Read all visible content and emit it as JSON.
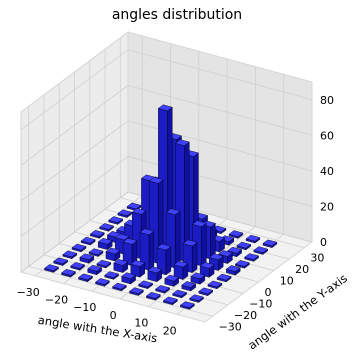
{
  "chart_data": {
    "type": "bar3d",
    "title": "angles distribution",
    "xlabel": "angle with the X-axis",
    "ylabel": "angle with the Y-axis",
    "zlabel": "",
    "x_ticks": [
      -30,
      -20,
      -10,
      0,
      10,
      20
    ],
    "y_ticks": [
      -30,
      -20,
      -10,
      0,
      10,
      20,
      30
    ],
    "z_ticks": [
      0,
      20,
      40,
      60,
      80
    ],
    "xlim": [
      -35,
      30
    ],
    "ylim": [
      -35,
      35
    ],
    "zlim": [
      0,
      90
    ],
    "grid": true,
    "bar_color": "#1f1fd6",
    "bar_edge_color": "#000000",
    "bars": [
      {
        "x": -28,
        "y": -28,
        "z": 1
      },
      {
        "x": -22,
        "y": -28,
        "z": 1
      },
      {
        "x": -16,
        "y": -28,
        "z": 1
      },
      {
        "x": -10,
        "y": -28,
        "z": 1
      },
      {
        "x": -4,
        "y": -28,
        "z": 1
      },
      {
        "x": 2,
        "y": -28,
        "z": 1
      },
      {
        "x": 8,
        "y": -28,
        "z": 1
      },
      {
        "x": 14,
        "y": -28,
        "z": 1
      },
      {
        "x": 20,
        "y": -28,
        "z": 1
      },
      {
        "x": -28,
        "y": -22,
        "z": 1
      },
      {
        "x": -22,
        "y": -22,
        "z": 1
      },
      {
        "x": -16,
        "y": -22,
        "z": 2
      },
      {
        "x": -10,
        "y": -22,
        "z": 1
      },
      {
        "x": -4,
        "y": -22,
        "z": 3
      },
      {
        "x": 2,
        "y": -22,
        "z": 1
      },
      {
        "x": 8,
        "y": -22,
        "z": 1
      },
      {
        "x": 14,
        "y": -22,
        "z": 1
      },
      {
        "x": 20,
        "y": -22,
        "z": 1
      },
      {
        "x": -28,
        "y": -16,
        "z": 1
      },
      {
        "x": -22,
        "y": -16,
        "z": 2
      },
      {
        "x": -16,
        "y": -16,
        "z": 1
      },
      {
        "x": -10,
        "y": -16,
        "z": 4
      },
      {
        "x": -4,
        "y": -16,
        "z": 6
      },
      {
        "x": 2,
        "y": -16,
        "z": 5
      },
      {
        "x": 8,
        "y": -16,
        "z": 3
      },
      {
        "x": 14,
        "y": -16,
        "z": 2
      },
      {
        "x": 20,
        "y": -16,
        "z": 1
      },
      {
        "x": -28,
        "y": -10,
        "z": 1
      },
      {
        "x": -22,
        "y": -10,
        "z": 1
      },
      {
        "x": -16,
        "y": -10,
        "z": 4
      },
      {
        "x": -10,
        "y": -10,
        "z": 12
      },
      {
        "x": -4,
        "y": -10,
        "z": 20
      },
      {
        "x": 2,
        "y": -10,
        "z": 14
      },
      {
        "x": 8,
        "y": -10,
        "z": 7
      },
      {
        "x": 14,
        "y": -10,
        "z": 3
      },
      {
        "x": 20,
        "y": -10,
        "z": 1
      },
      {
        "x": -28,
        "y": -4,
        "z": 1
      },
      {
        "x": -22,
        "y": -4,
        "z": 3
      },
      {
        "x": -16,
        "y": -4,
        "z": 8
      },
      {
        "x": -10,
        "y": -4,
        "z": 25
      },
      {
        "x": -4,
        "y": -4,
        "z": 45
      },
      {
        "x": 2,
        "y": -4,
        "z": 30
      },
      {
        "x": 8,
        "y": -4,
        "z": 15
      },
      {
        "x": 14,
        "y": -4,
        "z": 5
      },
      {
        "x": 20,
        "y": -4,
        "z": 1
      },
      {
        "x": -28,
        "y": 2,
        "z": 1
      },
      {
        "x": -22,
        "y": 2,
        "z": 3
      },
      {
        "x": -16,
        "y": 2,
        "z": 12
      },
      {
        "x": -10,
        "y": 2,
        "z": 40
      },
      {
        "x": -4,
        "y": 2,
        "z": 82
      },
      {
        "x": 2,
        "y": 2,
        "z": 65
      },
      {
        "x": 8,
        "y": 2,
        "z": 22
      },
      {
        "x": 14,
        "y": 2,
        "z": 6
      },
      {
        "x": 20,
        "y": 2,
        "z": 2
      },
      {
        "x": -28,
        "y": 8,
        "z": 1
      },
      {
        "x": -22,
        "y": 8,
        "z": 2
      },
      {
        "x": -16,
        "y": 8,
        "z": 8
      },
      {
        "x": -10,
        "y": 8,
        "z": 35
      },
      {
        "x": -4,
        "y": 8,
        "z": 62
      },
      {
        "x": 2,
        "y": 8,
        "z": 55
      },
      {
        "x": 8,
        "y": 8,
        "z": 18
      },
      {
        "x": 14,
        "y": 8,
        "z": 4
      },
      {
        "x": 20,
        "y": 8,
        "z": 1
      },
      {
        "x": -28,
        "y": 14,
        "z": 1
      },
      {
        "x": -22,
        "y": 14,
        "z": 1
      },
      {
        "x": -16,
        "y": 14,
        "z": 3
      },
      {
        "x": -10,
        "y": 14,
        "z": 12
      },
      {
        "x": -4,
        "y": 14,
        "z": 22
      },
      {
        "x": 2,
        "y": 14,
        "z": 16
      },
      {
        "x": 8,
        "y": 14,
        "z": 6
      },
      {
        "x": 14,
        "y": 14,
        "z": 2
      },
      {
        "x": 20,
        "y": 14,
        "z": 1
      },
      {
        "x": -28,
        "y": 20,
        "z": 1
      },
      {
        "x": -22,
        "y": 20,
        "z": 1
      },
      {
        "x": -16,
        "y": 20,
        "z": 1
      },
      {
        "x": -10,
        "y": 20,
        "z": 3
      },
      {
        "x": -4,
        "y": 20,
        "z": 5
      },
      {
        "x": 2,
        "y": 20,
        "z": 4
      },
      {
        "x": 8,
        "y": 20,
        "z": 2
      },
      {
        "x": 14,
        "y": 20,
        "z": 1
      },
      {
        "x": 20,
        "y": 20,
        "z": 1
      },
      {
        "x": -28,
        "y": 26,
        "z": 1
      },
      {
        "x": -22,
        "y": 26,
        "z": 1
      },
      {
        "x": -16,
        "y": 26,
        "z": 1
      },
      {
        "x": -10,
        "y": 26,
        "z": 1
      },
      {
        "x": -4,
        "y": 26,
        "z": 1
      },
      {
        "x": 2,
        "y": 26,
        "z": 1
      },
      {
        "x": 8,
        "y": 26,
        "z": 1
      },
      {
        "x": 14,
        "y": 26,
        "z": 1
      },
      {
        "x": 20,
        "y": 26,
        "z": 1
      }
    ]
  }
}
